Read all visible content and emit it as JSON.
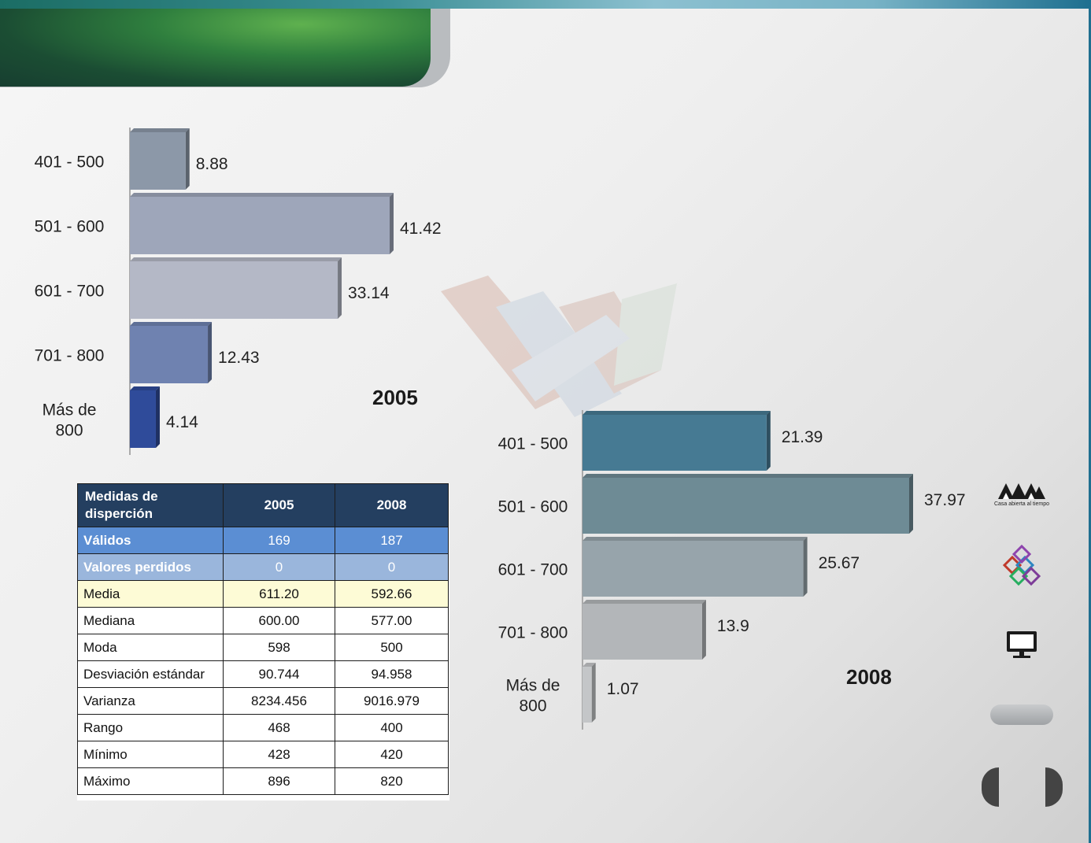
{
  "logo": {
    "caption": "Casa abierta al tiempo"
  },
  "icons": [
    "uam-logo-icon",
    "cubes-icon",
    "monitor-icon"
  ],
  "chart_data": [
    {
      "type": "bar",
      "orientation": "horizontal",
      "title": "2005",
      "categories": [
        "401 - 500",
        "501 - 600",
        "601 - 700",
        "701 - 800",
        "Más de 800"
      ],
      "category_lines": [
        [
          "401 - 500"
        ],
        [
          "501 - 600"
        ],
        [
          "601 - 700"
        ],
        [
          "701 - 800"
        ],
        [
          "Más de",
          "800"
        ]
      ],
      "values": [
        8.88,
        41.42,
        33.14,
        12.43,
        4.14
      ],
      "value_labels": [
        "8.88",
        "41.42",
        "33.14",
        "12.43",
        "4.14"
      ],
      "colors": [
        "#8c98a8",
        "#9ea6ba",
        "#b4b8c6",
        "#6f82b0",
        "#2f4b9a"
      ]
    },
    {
      "type": "bar",
      "orientation": "horizontal",
      "title": "2008",
      "categories": [
        "401 - 500",
        "501 - 600",
        "601 - 700",
        "701 - 800",
        "Más de 800"
      ],
      "category_lines": [
        [
          "401 - 500"
        ],
        [
          "501 - 600"
        ],
        [
          "601 - 700"
        ],
        [
          "701 - 800"
        ],
        [
          "Más de",
          "800"
        ]
      ],
      "values": [
        21.39,
        37.97,
        25.67,
        13.9,
        1.07
      ],
      "value_labels": [
        "21.39",
        "37.97",
        "25.67",
        "13.9",
        "1.07"
      ],
      "colors": [
        "#467a93",
        "#6e8b95",
        "#97a4ab",
        "#b3b6b9",
        "#c4c6c8"
      ]
    }
  ],
  "stats_table": {
    "headers": [
      "Medidas de disperción",
      "2005",
      "2008"
    ],
    "rows": [
      [
        "Válidos",
        "169",
        "187"
      ],
      [
        "Valores perdidos",
        "0",
        "0"
      ],
      [
        "Media",
        "611.20",
        "592.66"
      ],
      [
        "Mediana",
        "600.00",
        "577.00"
      ],
      [
        "Moda",
        "598",
        "500"
      ],
      [
        "Desviación estándar",
        "90.744",
        "94.958"
      ],
      [
        "Varianza",
        "8234.456",
        "9016.979"
      ],
      [
        "Rango",
        "468",
        "400"
      ],
      [
        "Mínimo",
        "428",
        "420"
      ],
      [
        "Máximo",
        "896",
        "820"
      ]
    ]
  }
}
